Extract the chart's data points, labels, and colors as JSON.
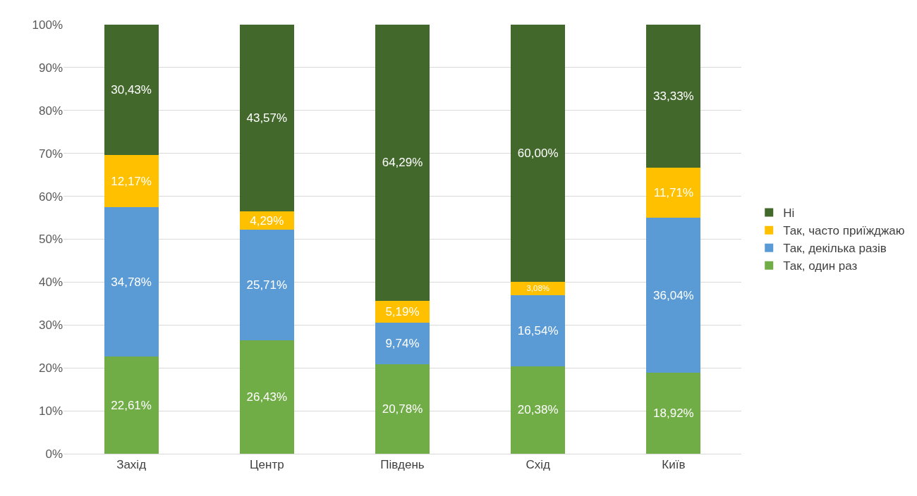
{
  "chart_data": {
    "type": "bar",
    "stacked": true,
    "categories": [
      "Захід",
      "Центр",
      "Південь",
      "Схід",
      "Київ"
    ],
    "series": [
      {
        "name": "Так, один раз",
        "color": "#70ad47",
        "values": [
          22.61,
          26.43,
          20.78,
          20.38,
          18.92
        ],
        "value_labels": [
          "22,61%",
          "26,43%",
          "20,78%",
          "20,38%",
          "18,92%"
        ]
      },
      {
        "name": "Так, декілька разів",
        "color": "#5b9bd5",
        "values": [
          34.78,
          25.71,
          9.74,
          16.54,
          36.04
        ],
        "value_labels": [
          "34,78%",
          "25,71%",
          "9,74%",
          "16,54%",
          "36,04%"
        ]
      },
      {
        "name": "Так, часто приїжджаю",
        "color": "#ffc000",
        "values": [
          12.17,
          4.29,
          5.19,
          3.08,
          11.71
        ],
        "value_labels": [
          "12,17%",
          "4,29%",
          "5,19%",
          "3,08%",
          "11,71%"
        ]
      },
      {
        "name": "Ні",
        "color": "#43682b",
        "values": [
          30.43,
          43.57,
          64.29,
          60.0,
          33.33
        ],
        "value_labels": [
          "30,43%",
          "43,57%",
          "64,29%",
          "60,00%",
          "33,33%"
        ]
      }
    ],
    "ylim": [
      0,
      100
    ],
    "yticks": [
      {
        "value": 0,
        "label": "0%"
      },
      {
        "value": 10,
        "label": "10%"
      },
      {
        "value": 20,
        "label": "20%"
      },
      {
        "value": 30,
        "label": "30%"
      },
      {
        "value": 40,
        "label": "40%"
      },
      {
        "value": 50,
        "label": "50%"
      },
      {
        "value": 60,
        "label": "60%"
      },
      {
        "value": 70,
        "label": "70%"
      },
      {
        "value": 80,
        "label": "80%"
      },
      {
        "value": 90,
        "label": "90%"
      },
      {
        "value": 100,
        "label": "100%"
      }
    ],
    "grid": "y",
    "legend": "right"
  }
}
